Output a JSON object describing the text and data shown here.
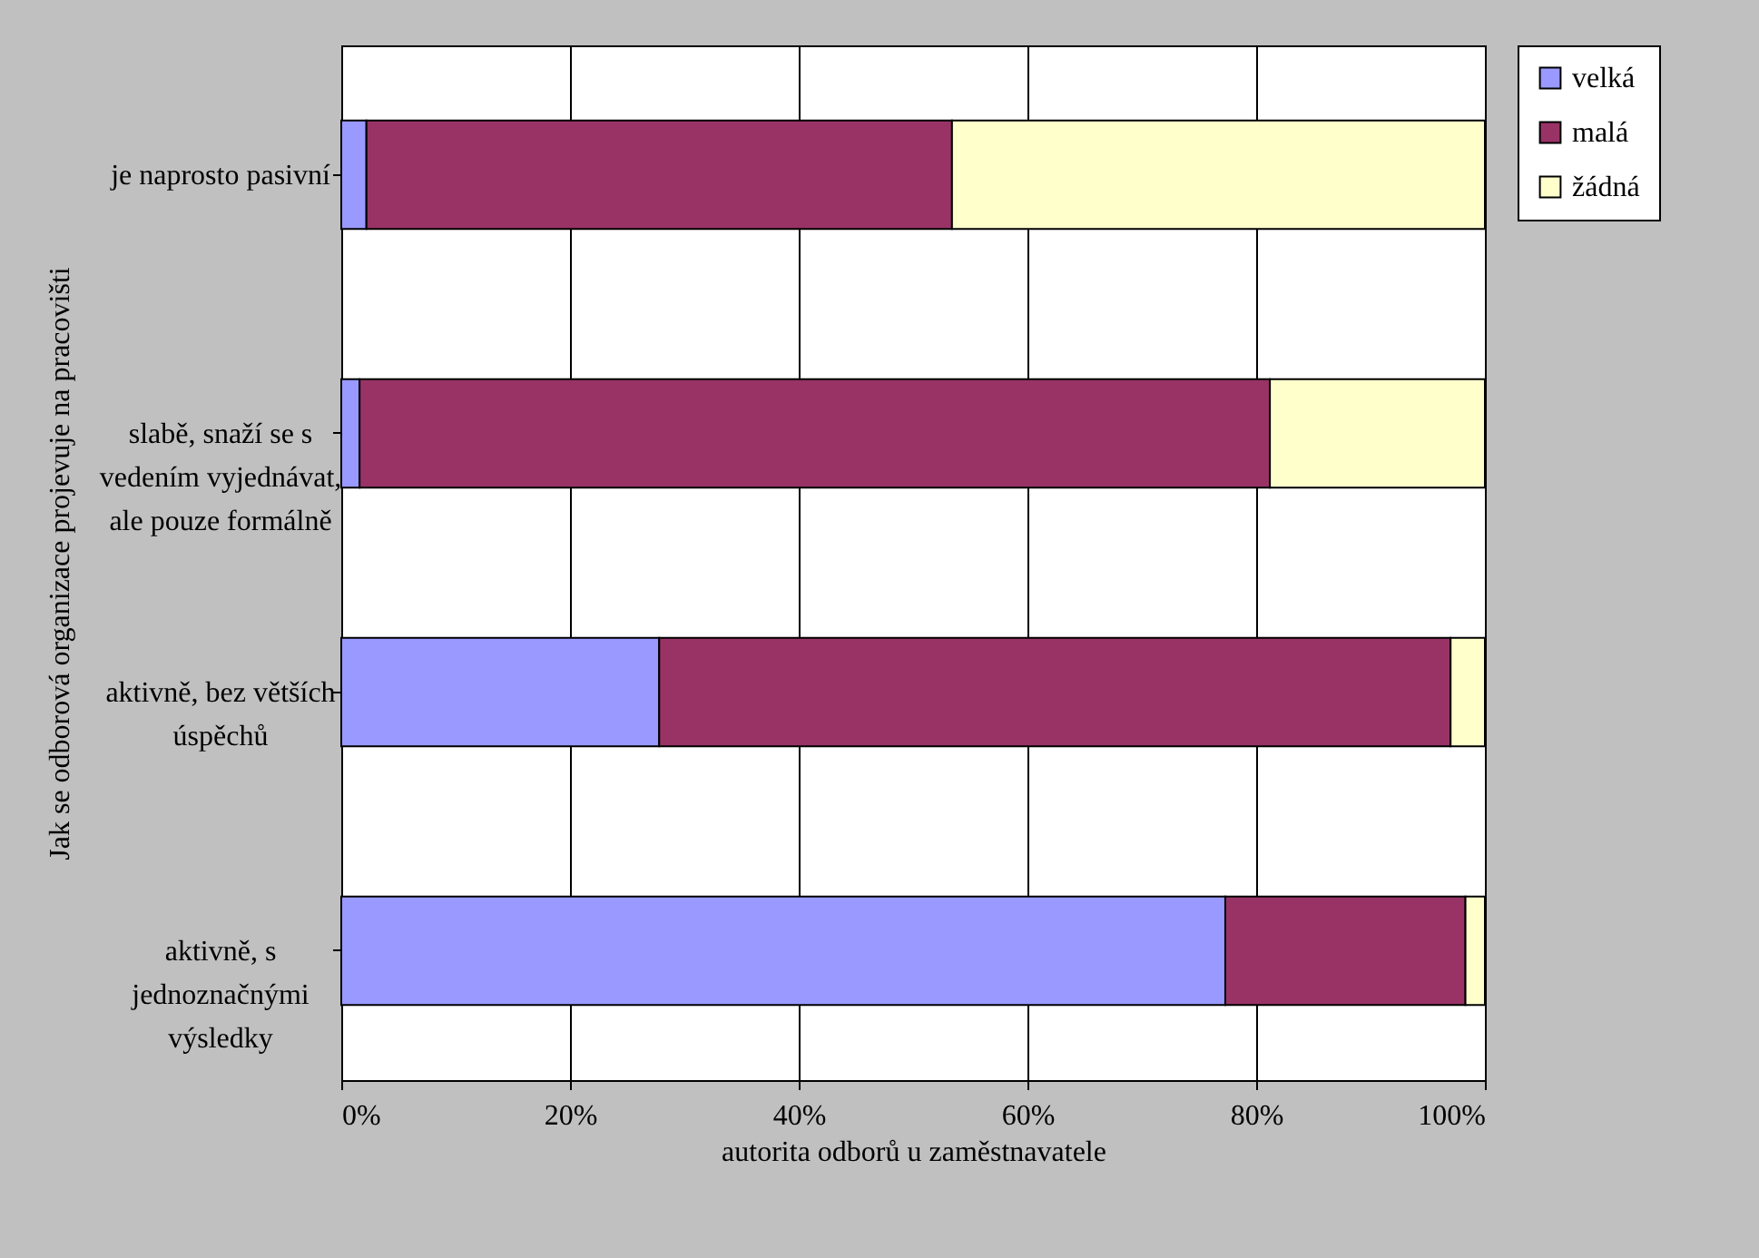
{
  "chart_data": {
    "type": "bar",
    "orientation": "horizontal",
    "stacked": true,
    "ylabel": "Jak se odborová organizace projevuje na pracovišti",
    "xlabel": "autorita odborů u zaměstnavatele",
    "categories": [
      "je naprosto pasivní",
      "slabě, snaží se s vedením vyjednávat, ale pouze formálně",
      "aktivně, bez větších úspěchů",
      "aktivně, s jednoznačnými výsledky"
    ],
    "series": [
      {
        "name": "velká",
        "color": "#9999ff",
        "values": [
          2.2,
          1.6,
          27.8,
          77.3
        ]
      },
      {
        "name": "malá",
        "color": "#993366",
        "values": [
          51.2,
          79.6,
          69.2,
          21.0
        ]
      },
      {
        "name": "žádná",
        "color": "#ffffcc",
        "values": [
          46.6,
          18.8,
          3.0,
          1.7
        ]
      }
    ],
    "xlim": [
      0,
      100
    ],
    "xticks": [
      {
        "value": 0,
        "label": "0%"
      },
      {
        "value": 20,
        "label": "20%"
      },
      {
        "value": 40,
        "label": "40%"
      },
      {
        "value": 60,
        "label": "60%"
      },
      {
        "value": 80,
        "label": "80%"
      },
      {
        "value": 100,
        "label": "100%"
      }
    ],
    "grid": "x",
    "legend": "right"
  }
}
